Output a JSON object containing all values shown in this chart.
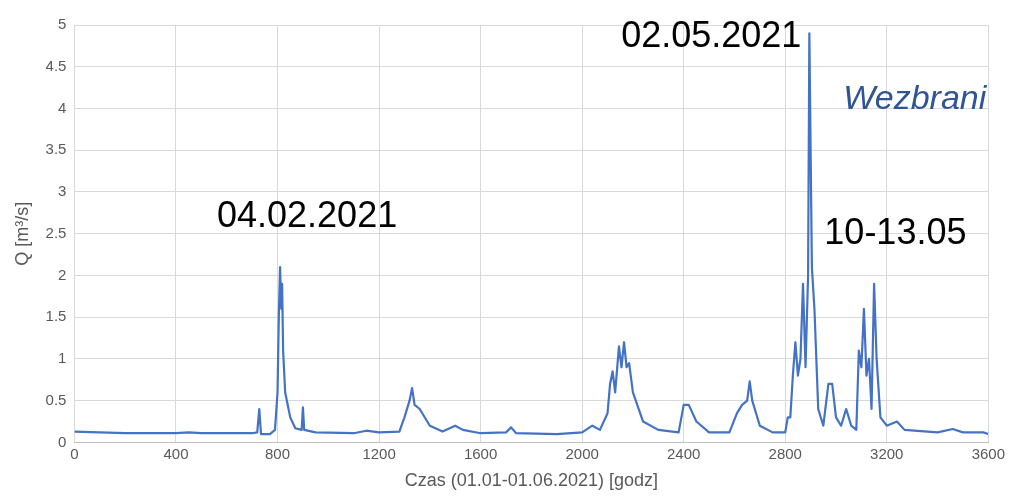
{
  "chart_data": {
    "type": "line",
    "xlabel": "Czas (01.01-01.06.2021) [godz]",
    "ylabel": "Q [m³/s]",
    "xlim": [
      0,
      3600
    ],
    "xticks": [
      0,
      400,
      800,
      1200,
      1600,
      2000,
      2400,
      2800,
      3200,
      3600
    ],
    "ylim": [
      0,
      5
    ],
    "yticks": [
      0,
      0.5,
      1,
      1.5,
      2,
      2.5,
      3,
      3.5,
      4,
      4.5,
      5
    ],
    "grid": true,
    "legend": false,
    "marker": "none",
    "line_style": "solid",
    "series": [
      {
        "color": "#4472c4",
        "x": [
          0,
          100,
          200,
          400,
          450,
          500,
          700,
          720,
          728,
          735,
          770,
          790,
          800,
          805,
          810,
          815,
          818,
          822,
          830,
          850,
          870,
          895,
          900,
          905,
          950,
          1100,
          1150,
          1200,
          1280,
          1300,
          1320,
          1330,
          1340,
          1360,
          1400,
          1450,
          1500,
          1530,
          1600,
          1700,
          1720,
          1740,
          1900,
          2000,
          2040,
          2070,
          2100,
          2110,
          2120,
          2130,
          2145,
          2155,
          2165,
          2175,
          2185,
          2200,
          2240,
          2300,
          2380,
          2400,
          2420,
          2450,
          2500,
          2580,
          2610,
          2630,
          2650,
          2660,
          2670,
          2700,
          2750,
          2800,
          2810,
          2820,
          2830,
          2840,
          2850,
          2860,
          2870,
          2880,
          2890,
          2895,
          2905,
          2915,
          2930,
          2950,
          2970,
          2985,
          3000,
          3020,
          3040,
          3060,
          3080,
          3090,
          3100,
          3110,
          3120,
          3130,
          3140,
          3150,
          3160,
          3175,
          3200,
          3240,
          3270,
          3400,
          3460,
          3500,
          3580,
          3600
        ],
        "values": [
          0.13,
          0.12,
          0.11,
          0.11,
          0.12,
          0.11,
          0.11,
          0.12,
          0.4,
          0.1,
          0.1,
          0.15,
          0.6,
          1.5,
          2.1,
          1.6,
          1.9,
          1.1,
          0.6,
          0.3,
          0.17,
          0.15,
          0.42,
          0.15,
          0.12,
          0.11,
          0.14,
          0.12,
          0.13,
          0.3,
          0.5,
          0.65,
          0.45,
          0.4,
          0.2,
          0.13,
          0.2,
          0.15,
          0.11,
          0.12,
          0.18,
          0.11,
          0.1,
          0.12,
          0.2,
          0.15,
          0.35,
          0.7,
          0.85,
          0.6,
          1.15,
          0.9,
          1.2,
          0.9,
          0.95,
          0.6,
          0.25,
          0.15,
          0.12,
          0.45,
          0.45,
          0.25,
          0.12,
          0.12,
          0.35,
          0.45,
          0.5,
          0.73,
          0.5,
          0.2,
          0.12,
          0.12,
          0.3,
          0.3,
          0.8,
          1.2,
          0.8,
          1.0,
          1.9,
          0.9,
          2.0,
          4.9,
          2.1,
          1.6,
          0.4,
          0.2,
          0.7,
          0.7,
          0.3,
          0.2,
          0.4,
          0.2,
          0.15,
          1.1,
          0.9,
          1.6,
          0.8,
          1.0,
          0.4,
          1.9,
          1.0,
          0.3,
          0.2,
          0.25,
          0.15,
          0.12,
          0.16,
          0.12,
          0.12,
          0.1
        ]
      }
    ],
    "annotations": [
      {
        "text": "04.02.2021",
        "x": 810,
        "y": 2.1
      },
      {
        "text": "02.05.2021",
        "x": 2895,
        "y": 4.9
      },
      {
        "text": "10-13.05",
        "x": 3150,
        "y": 1.9
      },
      "Wezbrani"
    ]
  }
}
